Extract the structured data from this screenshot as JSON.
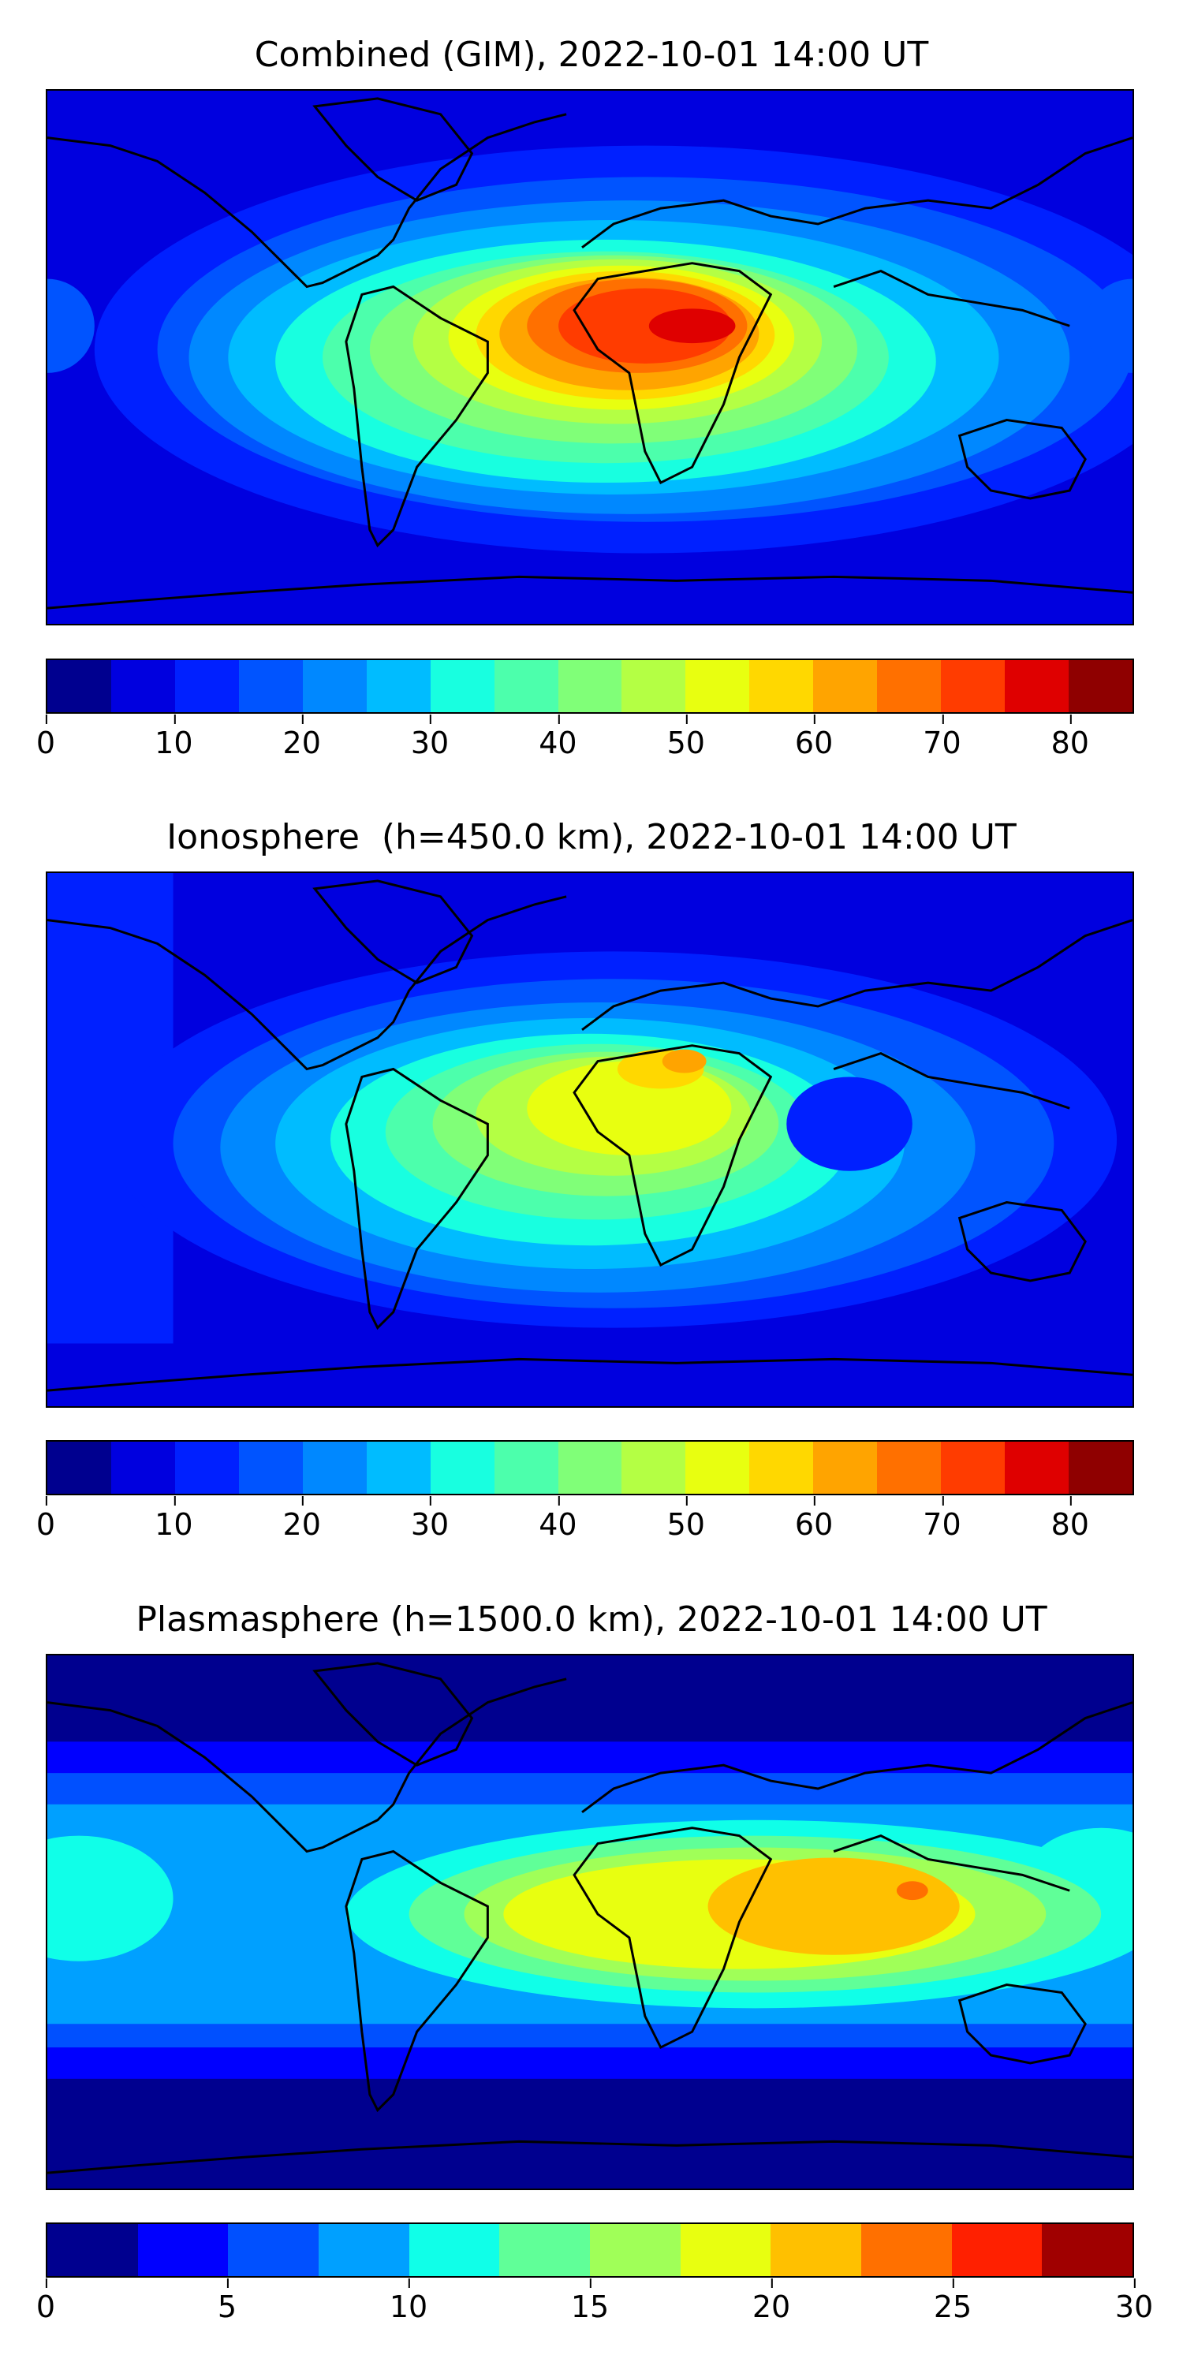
{
  "panels": [
    {
      "title": "Combined (GIM), 2022-10-01 14:00 UT",
      "colorbar": {
        "colors": [
          "#00008f",
          "#0000df",
          "#0020ff",
          "#0054ff",
          "#0088ff",
          "#00bcff",
          "#18ffe0",
          "#4cffac",
          "#80ff78",
          "#b4ff44",
          "#e8ff10",
          "#ffd800",
          "#ffa400",
          "#ff7000",
          "#ff3c00",
          "#df0000",
          "#8f0000"
        ],
        "ticks": [
          "0",
          "10",
          "20",
          "30",
          "40",
          "50",
          "60",
          "70",
          "80"
        ],
        "min": 0,
        "max": 85
      }
    },
    {
      "title": "Ionosphere  (h=450.0 km), 2022-10-01 14:00 UT",
      "colorbar": {
        "colors": [
          "#00008f",
          "#0000df",
          "#0020ff",
          "#0054ff",
          "#0088ff",
          "#00bcff",
          "#18ffe0",
          "#4cffac",
          "#80ff78",
          "#b4ff44",
          "#e8ff10",
          "#ffd800",
          "#ffa400",
          "#ff7000",
          "#ff3c00",
          "#df0000",
          "#8f0000"
        ],
        "ticks": [
          "0",
          "10",
          "20",
          "30",
          "40",
          "50",
          "60",
          "70",
          "80"
        ],
        "min": 0,
        "max": 85
      }
    },
    {
      "title": "Plasmasphere (h=1500.0 km), 2022-10-01 14:00 UT",
      "colorbar": {
        "colors": [
          "#00008f",
          "#0000ff",
          "#0050ff",
          "#00a0ff",
          "#10ffe8",
          "#60ff98",
          "#a0ff58",
          "#e8ff10",
          "#ffc000",
          "#ff7000",
          "#ff2000",
          "#a00000"
        ],
        "ticks": [
          "0",
          "5",
          "10",
          "15",
          "20",
          "25",
          "30"
        ],
        "min": 0,
        "max": 30
      }
    }
  ]
}
